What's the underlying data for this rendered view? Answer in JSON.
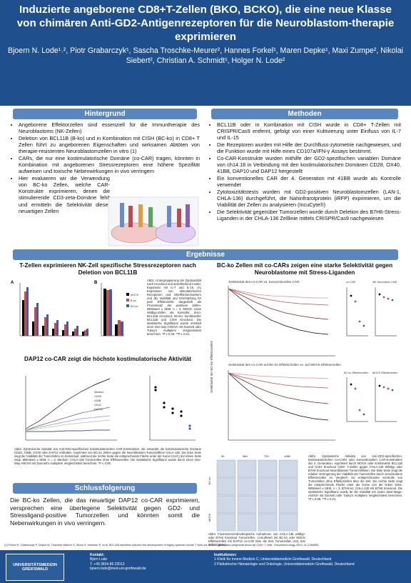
{
  "header": {
    "title": "Induzierte angeborene CD8+T-Zellen (BKO, BCKO), die eine neue Klasse von chimären Anti-GD2-Antigenrezeptoren für die Neuroblastom-therapie exprimieren",
    "authors": "Bjoern N. Lode¹˒², Piotr Grabarczyk¹, Sascha Troschke-Meurer², Hannes Forkel¹, Maren Depke¹, Maxi Zumpe², Nikolai Siebert², Christian A. Schmidt¹, Holger N. Lode²"
  },
  "sections": {
    "hintergrund": "Hintergrund",
    "methoden": "Methoden",
    "ergebnisse": "Ergebnisse",
    "schlussfolgerung": "Schlussfolgerung"
  },
  "hintergrund_items": [
    "Angeborene Effektorzellen sind essenziell für die Immuntherapie des Neuroblastoms (NK-Zellen)",
    "Deletion von BCL11B (B-ko) und in Kombination mit CISH (BC-ko) in CD8+ T Zellen führt zu angeborenen Eigenschaften und wirksamen Abtöten von therapie-resistenten Neuroblastomzellen in vitro (1)",
    "CARs, die nur eine kostimulatorische Domäne (co-CAR) tragen, könnten in Kombination mit angeborenen Stressrezeptoren eine höhere Spezifität aufweisen und toxische Nebenwirkungen in vivo verringern",
    "Hier evaluieren wir die Verwendung von BC-ko Zellen, welche CAR-Konstrukte exprimieren, denen die stimulierende CD3-zeta-Domäne fehlt und ermitteln die Selektivität dieser neuartigen Zellen"
  ],
  "methoden_items": [
    "BCL11B oder in Kombination mit CISH wurde in CD8+ T-Zellen mit CRISPR/Cas9 entfernt, gefolgt von einer Kultivierung unter Einfluss von IL-7 und IL-15",
    "Die Rezeptoren wurden mit Hilfe der Durchfluss-zytometrie nachgewiesen, und die Funktion wurde mit Hilfe eines CD107a/IFN-γ Assays bestimmt.",
    "Co-CAR-Konstrukte wurden mithilfe der GD2-spezifischen variablen Domäne von ch14.18 in Verbindung mit den kostimulatorischen Domänen CD28, OX40, 41BB, DAP10 und DAP12 hergestellt",
    "Ein konventionelles CAR der 4. Generation mit 41BB wurde als Kontrolle verwendet",
    "Zytotoxizitätstests wurden mit GD2-positiven Neuroblastomzellen (LAN-1, CHLA-136) durchgeführt, die Nahinfrarotprotein (iRFP) exprimieren, um die Viabilität der Zellen zu analysieren (IncuCyte®)",
    "Die Selektivität gegenüber Tumorzellen wurde durch Deletion des B7H6-Stress-Liganden in der CHLA-136 Zelllinie mittels CRISPR/Cas9 nachgewiesen"
  ],
  "fig1": {
    "title": "T-Zellen exprimieren NK-Zell spezifische Stressrezeptoren nach Deletion von BCL11B",
    "legend": [
      "MOCK",
      "B-ko",
      "BC-ko"
    ],
    "caption": "Abb1. Untergruppierung der Zytotoxizität nach Knockout und anschließend Invitro-Expansion mit IL-7 und IL-15. (A) Expression von stimulatorischen Rezeptoren und Oberflächenmarkern und (B) Viabilität und Erschöpfung für jede Effektorzelle dargestellt als Prozentsatz der positiven Zellen. Mittelwert ± SEM. n = 3. MOCK: naive Wildtyp-Zellen als Kontrolle; B-ko: BCL11B Knockout; BC-ko: kombinierter BCL11B und CISH Knockout. Die statistische Signifikanz wurde ermittelt einer One-way-ANOVA mit Dunnett oder Tukey's multiplem Vergleichstest berechnet. *P ≤ 0.05, **P ≤ 0.01."
  },
  "fig2": {
    "title": "DAP12 co-CAR zeigt die höchste kostimulatorische Aktivität",
    "legend": [
      "Medium",
      "CD28",
      "41BB",
      "OX40",
      "DAP12"
    ],
    "caption": "Abb2. Zytotoxische Aktivität von Anti-GD2-spezifischen kostimulatorischen CAR-Konstrukten, die entweder die kostimulatorische Domäne CD28, 41BB, OX40 oder DAP12 enthalten, exprimiert von BC-ko Zellen gegen die Neuroblastom-Tumorzelllinie CHLA-136. Die linke Seite zeigt die Viabilität der Tumorzellen im Zeitverlauf, während die rechte Seite die entsprechende Fläche unter der Kurve (AUC) der linken Seite zeigt. Mittelwert ± SEM, n = 3. Medium: CHLA-136 Tumorzellen ohne Effektorzellen. Die statistische Signifikanz wurde durch einen One-Way-ANOVA mit Dunnett's multiplem Vergleichstest berechnet. *P ≤ 0.05."
  },
  "fig3": {
    "title": "BC-ko Zellen mit co-CARs zeigen eine starke Selektivität gegen Neuroblastome mit Stress-Liganden",
    "sub1": "Selektivität des co-CAR vs. konventionelles CAR",
    "sub2": "Selektivität des co-CAR auf BC-ko Effektorzellen vs. auf MOCK Effektorzellen",
    "ylabel": "Selektivität der BC-ko Effektorzellen",
    "panel_co_car": "co-CAR",
    "panel_4th": "4th Generation CAR",
    "panel_bcko": "BC-ko Effektorzellen",
    "panel_mock": "MOCK Effektorzellen",
    "time_labels": [
      "0h",
      "36h",
      "72h",
      "108h"
    ],
    "row_labels": [
      "BC-ko",
      "MOCK"
    ],
    "caption_a": "Abb3. Zytotoxische Aktivität von Anti-GD2-spezifischen, kostimulatorischen co-CARs oder konventionellen CAR-Konstrukten der 4. Generation, exprimiert durch MOCK oder kombinierte BCL11B und CISH Knockout CD8+ T-Zellen gegen CHLA-136 Wildtyp oder B7H6 Knockout Neuroblastom Tumorzelllinien. Die linke Seite zeigt die relative Verringerung der Viabilität der Tumorzellen durch verschiedene Effektorzellen im Vergleich zur entsprechenden Kontrolle von Tumorzellen ohne Effektorzellen über die Zeit. Die rechte Seite zeigt die entsprechende Fläche unter der Kurve von der linken Seite. Mittelwert ± SEM, n = 3. B7H6-ko: CHLA-136 mit B7H6 Knockout. Die statistische Signifikanz wurde für die Viabilität mit einem Zwei-Wege-ANOVA mit Dunnett oder Tukey's multiplem Vergleichstest berechnet. *P ≤ 0.05, **P ≤ 0.01.",
    "caption_b": "Abb4. Fluoreszenzmikroskopische Aufnahmen von CHLA-136 wildtyp- oder B7H6 Knockout Tumorzellen, co-kultiviert mit BC-ko oder MOCK Effektorzellen mit DAP12 co-CAR über die Zeit. Tumorzellen (rot), tote Zellen (grün)."
  },
  "conclusion": "Die BC-ko Zellen, die das neuartige DAP12 co-CAR exprimieren, versprechen eine überlegene Selektivität gegen GD2- und Stressligand-positive Tumorzellen und könnten somit die Nebenwirkungen in vivo verringern.",
  "references": "(1) Forkel H, Grabarczyk P, Depke M, Troschke-Meurer S, Simm S, Hammer E, et al. BCL11B depletion induces the development of highly cytotoxic innate T cells out of IL-15 stimulated peripheral blood αβ CD8+ T cells. Oncoimmunology 2022; 11:2148850.",
  "footer": {
    "logo_text": "UNIVERSITÄTSMEDIZIN GREIFSWALD",
    "contact_head": "Kontakt:",
    "contact_name": "Björn Lode",
    "contact_phone": "T: +49 3834 86 22013",
    "contact_mail": "bjoern.lode@med.uni-greifswald.de",
    "inst_head": "Institutionen:",
    "inst_1": "1 Klinik für Innere Medizin C, Universitätsmedizin Greifswald, Deutschland",
    "inst_2": "2 Pädiatrische Hämatologie und Onkologie, Universitätsmedizin Greifswald, Deutschland"
  },
  "colors": {
    "header": "#1f4f8c",
    "section": "#5a86bf",
    "mock": "#000000",
    "bko": "#d04a4a",
    "bcko": "#3a5fb0"
  }
}
